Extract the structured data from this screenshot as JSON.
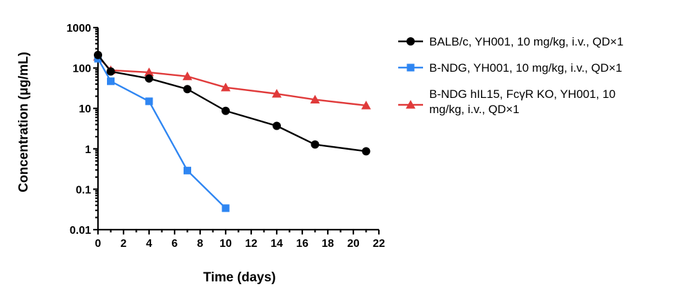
{
  "chart_data": {
    "type": "line",
    "title": "",
    "xlabel": "Time (days)",
    "ylabel": "Concentration (μg/mL)",
    "xlim": [
      0,
      22
    ],
    "ylim": [
      0.01,
      1000
    ],
    "yscale": "log",
    "grid": false,
    "legend_position": "right",
    "x_ticks": [
      0,
      2,
      4,
      6,
      8,
      10,
      12,
      14,
      16,
      18,
      20,
      22
    ],
    "x_tick_labels": [
      "0",
      "2",
      "4",
      "6",
      "8",
      "10",
      "12",
      "14",
      "16",
      "18",
      "20",
      "22"
    ],
    "y_ticks": [
      0.01,
      0.1,
      1,
      10,
      100,
      1000
    ],
    "y_tick_labels": [
      "0.01",
      "0.1",
      "1",
      "10",
      "100",
      "1000"
    ],
    "series": [
      {
        "name": "BALB/c, YH001, 10 mg/kg, i.v., QD×1",
        "legend_lines": [
          "BALB/c, YH001, 10 mg/kg, i.v., QD×1"
        ],
        "color": "#000000",
        "marker": "circle",
        "x": [
          0,
          1,
          4,
          7,
          10,
          14,
          17,
          21
        ],
        "y": [
          210,
          82,
          55,
          30,
          8.7,
          3.7,
          1.28,
          0.87
        ]
      },
      {
        "name": "B-NDG, YH001, 10 mg/kg, i.v., QD×1",
        "legend_lines": [
          "B-NDG, YH001, 10 mg/kg, i.v., QD×1"
        ],
        "color": "#2f86f2",
        "marker": "square",
        "x": [
          0,
          1,
          4,
          7,
          10
        ],
        "y": [
          170,
          47,
          15,
          0.29,
          0.034
        ]
      },
      {
        "name": "B-NDG hIL15, FcγR KO, YH001, 10 mg/kg, i.v., QD×1",
        "legend_lines": [
          "B-NDG hIL15, FcγR KO, YH001, 10",
          "mg/kg, i.v., QD×1"
        ],
        "color": "#e03a3a",
        "marker": "triangle",
        "x": [
          0,
          1,
          4,
          7,
          10,
          14,
          17,
          21
        ],
        "y": [
          190,
          88,
          78,
          62,
          33,
          23,
          16.5,
          11.8
        ]
      }
    ]
  }
}
